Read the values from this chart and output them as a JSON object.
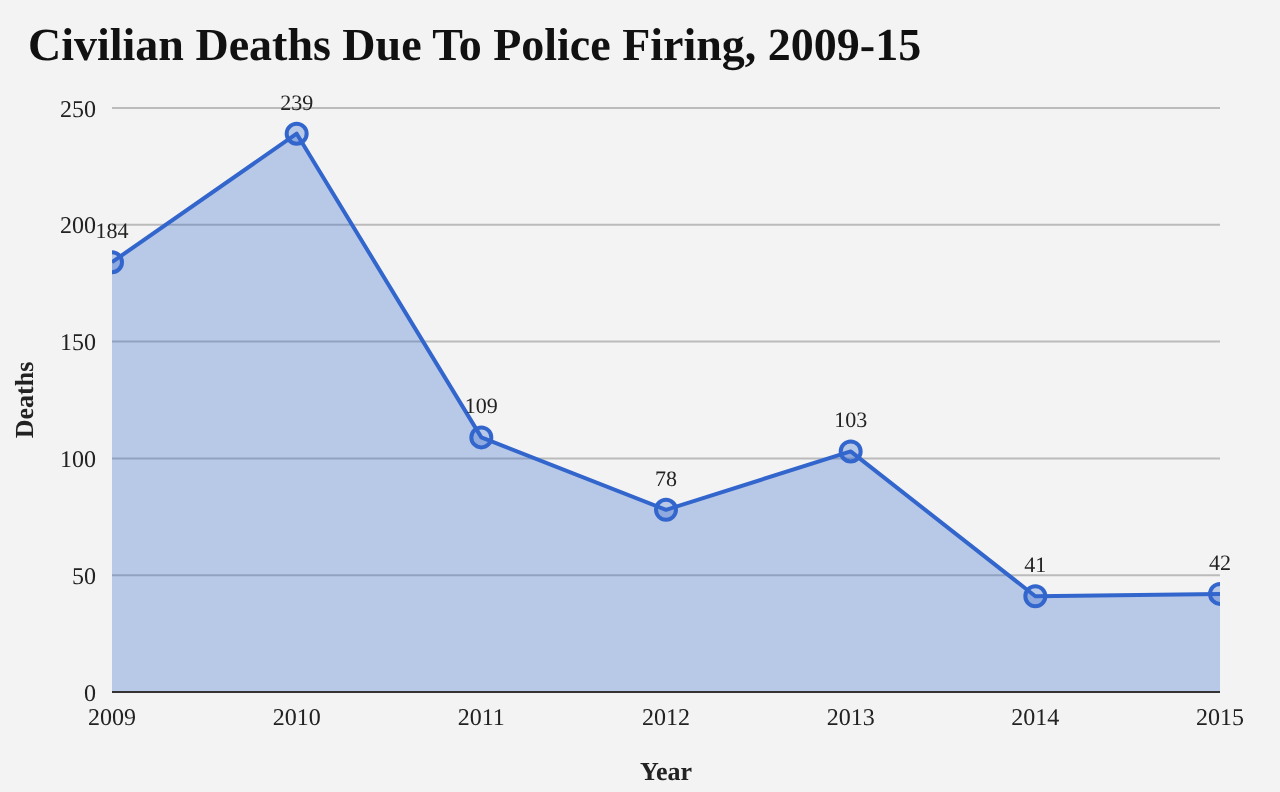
{
  "chart_data": {
    "type": "area",
    "title": "Civilian Deaths Due To Police Firing, 2009-15",
    "xlabel": "Year",
    "ylabel": "Deaths",
    "x": [
      2009,
      2010,
      2011,
      2012,
      2013,
      2014,
      2015
    ],
    "series": [
      {
        "color": "#3366cc",
        "values": [
          184,
          239,
          109,
          78,
          103,
          41,
          42
        ]
      }
    ],
    "xlim": [
      2009,
      2015
    ],
    "xticks": [
      2009,
      2010,
      2011,
      2012,
      2013,
      2014,
      2015
    ],
    "ylim": [
      0,
      250
    ],
    "yticks": [
      0,
      50,
      100,
      150,
      200,
      250
    ],
    "grid": "y",
    "marker": "circle",
    "data_labels": true,
    "legend": false
  }
}
